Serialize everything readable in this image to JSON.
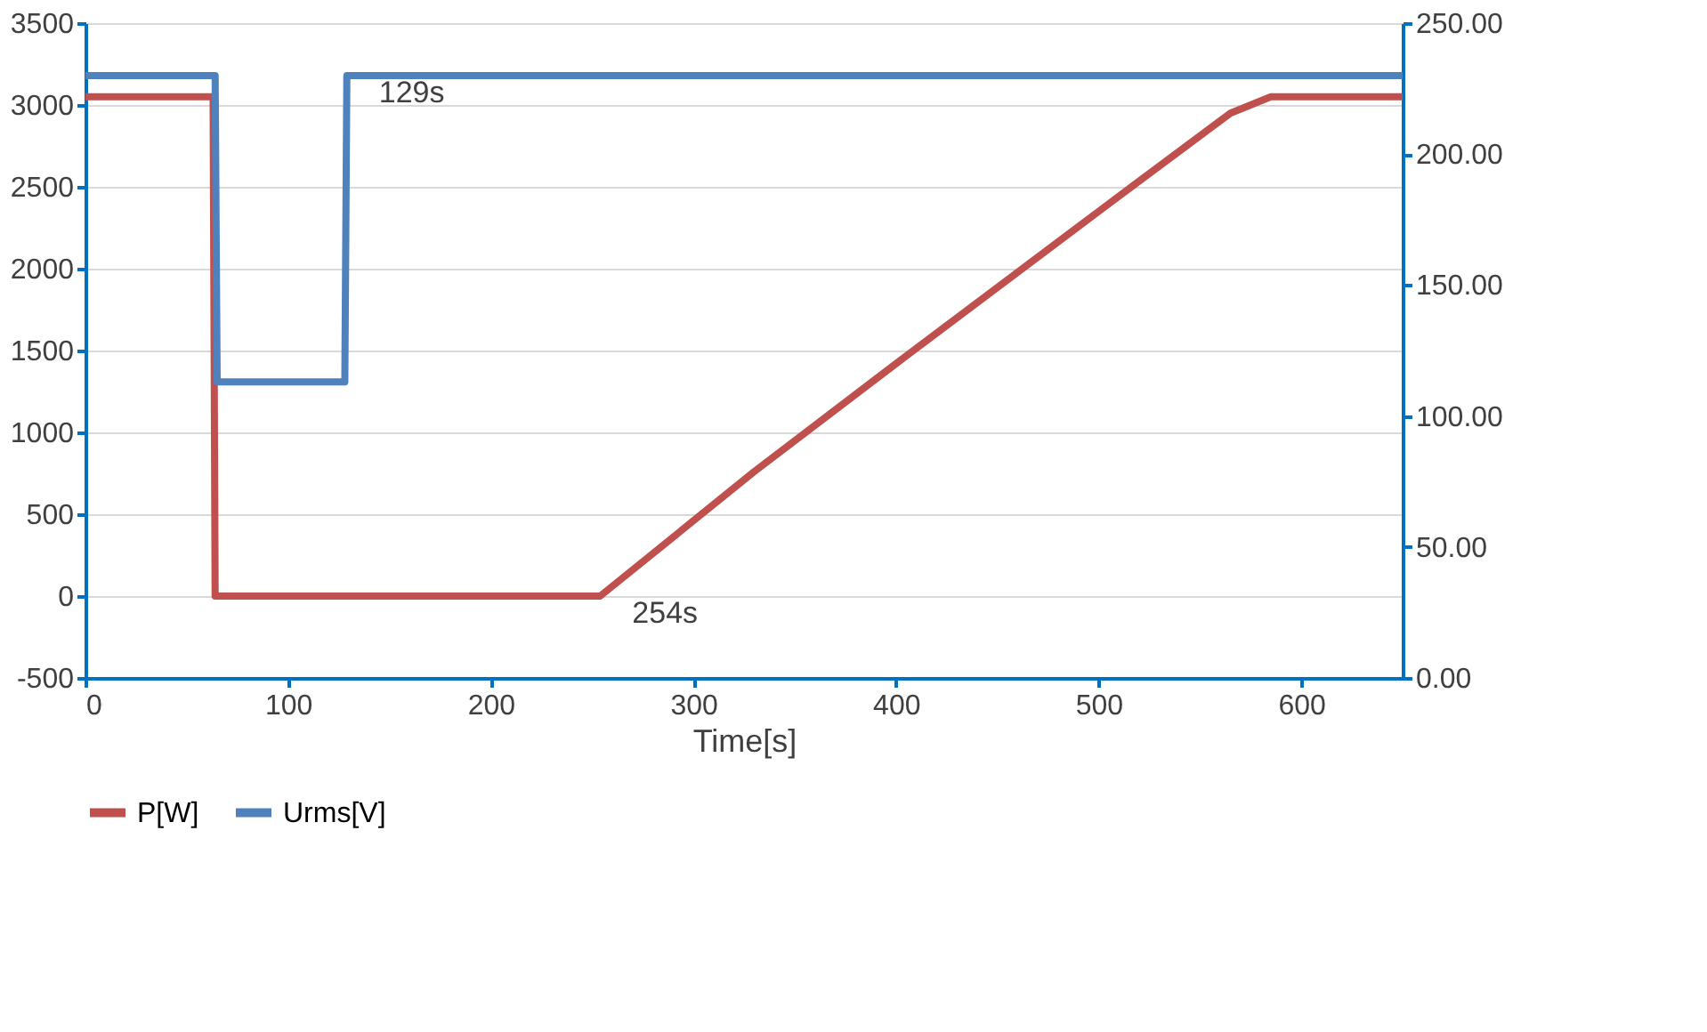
{
  "chart_data": {
    "type": "line",
    "xlabel": "Time[s]",
    "xlim": [
      0,
      650
    ],
    "xticks": [
      0,
      100,
      200,
      300,
      400,
      500,
      600
    ],
    "ylim": [
      -500,
      3500
    ],
    "yticks": [
      -500,
      0,
      500,
      1000,
      1500,
      2000,
      2500,
      3000,
      3500
    ],
    "y2lim": [
      0,
      250
    ],
    "y2ticks": [
      {
        "value": 0,
        "label": "0.00"
      },
      {
        "value": 50,
        "label": "50.00"
      },
      {
        "value": 100,
        "label": "100.00"
      },
      {
        "value": 150,
        "label": "150.00"
      },
      {
        "value": 200,
        "label": "200.00"
      },
      {
        "value": 250,
        "label": "250.00"
      }
    ],
    "series": [
      {
        "name": "P[W]",
        "color": "#c0504d",
        "x": [
          0,
          63,
          64,
          254,
          330,
          400,
          500,
          565,
          585,
          650
        ],
        "values": [
          3050,
          3050,
          0,
          0,
          760,
          1420,
          2350,
          2950,
          3050,
          3050
        ]
      },
      {
        "name": "Urms[V]",
        "color": "#4f81bd",
        "axis": "y2",
        "x": [
          0,
          64,
          65,
          128,
          129,
          650
        ],
        "values": [
          230,
          230,
          113,
          113,
          230,
          230
        ]
      }
    ],
    "annotations": [
      {
        "text": "129s",
        "x": 129,
        "y": 3180
      },
      {
        "text": "254s",
        "x": 254,
        "y": 0
      }
    ],
    "grid": "y",
    "legend": "bottom",
    "line_style": "solid",
    "marker": "none"
  }
}
